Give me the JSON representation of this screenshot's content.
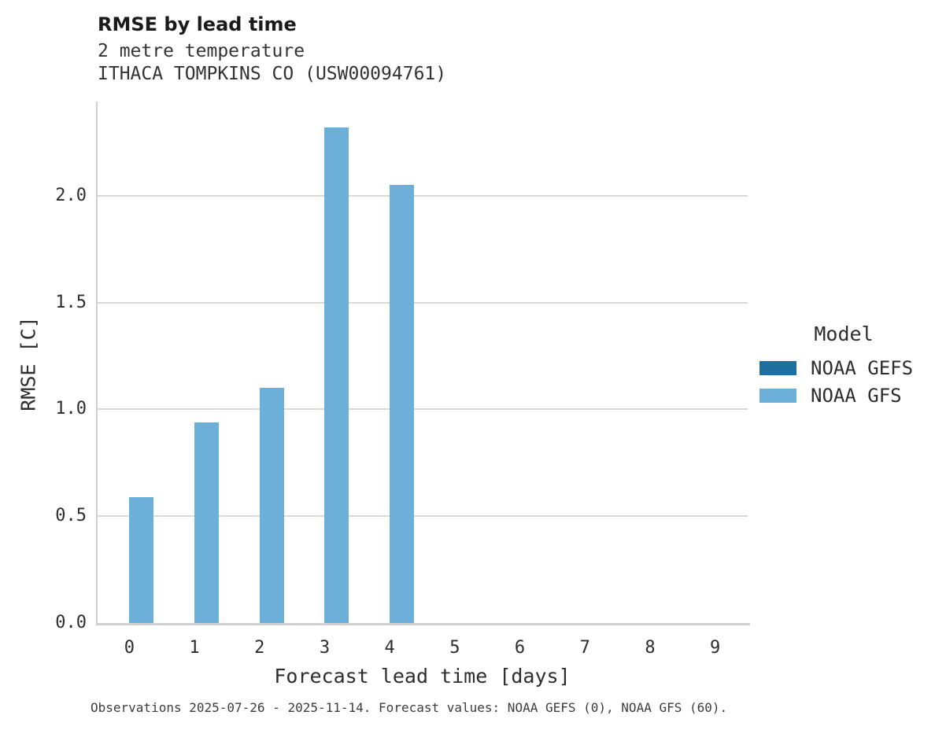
{
  "header": {
    "title": "RMSE by lead time",
    "subtitle_line1": "2 metre temperature",
    "subtitle_line2": "ITHACA TOMPKINS CO (USW00094761)"
  },
  "legend": {
    "title": "Model",
    "position": "right"
  },
  "footer": {
    "caption": "Observations 2025-07-26 - 2025-11-14. Forecast values: NOAA GEFS (0), NOAA GFS (60)."
  },
  "colors": {
    "noaa_gefs": "#1d6fa0",
    "noaa_gfs": "#6cb0d9",
    "gridline": "#d9d9d9",
    "axis_line": "#cfcfcf"
  },
  "chart_data": {
    "type": "bar",
    "title": "RMSE by lead time",
    "subtitle1": "2 metre temperature",
    "subtitle2": "ITHACA TOMPKINS CO (USW00094761)",
    "xlabel": "Forecast lead time [days]",
    "ylabel": "RMSE [C]",
    "categories": [
      0,
      1,
      2,
      3,
      4,
      5,
      6,
      7,
      8,
      9
    ],
    "series": [
      {
        "name": "NOAA GEFS",
        "color": "#1d6fa0",
        "values": []
      },
      {
        "name": "NOAA GFS",
        "color": "#6cb0d9",
        "values": [
          0.59,
          0.94,
          1.1,
          2.32,
          2.05
        ]
      }
    ],
    "ylim": [
      0,
      2.44
    ],
    "yticks": [
      0.0,
      0.5,
      1.0,
      1.5,
      2.0
    ],
    "grid": true,
    "legend_position": "right",
    "legend_title": "Model"
  }
}
